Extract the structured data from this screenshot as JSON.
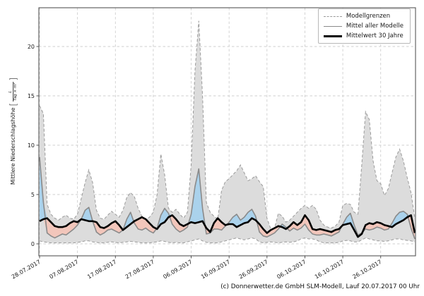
{
  "caption": "(c) Donnerwetter.de GmbH SLM-Modell, Lauf 20.07.2017 00 Uhr",
  "legend": {
    "items": [
      {
        "label": "Modellgrenzen",
        "style": "dashed-gray"
      },
      {
        "label": "Mittel aller Modelle",
        "style": "solid-gray"
      },
      {
        "label": "Mittelwert 30 Jahre",
        "style": "solid-black-thick"
      }
    ]
  },
  "axes": {
    "ylabel_text": "Mittlere Niederschlagshöhe",
    "ylabel_bracket_open": "[",
    "ylabel_fraction_numerator": "L",
    "ylabel_fraction_denominator": "Tag × m²",
    "ylabel_bracket_close": "]",
    "ytick_labels": [
      "0",
      "5",
      "10",
      "15",
      "20"
    ],
    "xtick_labels": [
      "28.07.2017",
      "07.08.2017",
      "17.08.2017",
      "27.08.2017",
      "06.09.2017",
      "16.09.2017",
      "26.09.2017",
      "06.10.2017",
      "16.10.2017",
      "26.10.2017"
    ]
  },
  "colors": {
    "envelope_fill": "#dcdcdc",
    "envelope_edge": "#9a9a9a",
    "model_mean_line": "#8a8a8a",
    "above_mean_fill": "#aad2ec",
    "below_mean_fill": "#f2c6bb",
    "climate_line": "#000000",
    "grid": "#cfcfcf",
    "frame": "#555555"
  },
  "chart_data": {
    "type": "line",
    "title": "",
    "xlabel": "",
    "ylabel": "Mittlere Niederschlagshöhe [L/(Tag × m²)]",
    "x_unit": "days since 28.07.2017 (daily values)",
    "xtick_days": [
      0,
      10,
      20,
      30,
      40,
      50,
      60,
      70,
      80,
      90
    ],
    "xtick_dates": [
      "28.07.2017",
      "07.08.2017",
      "17.08.2017",
      "27.08.2017",
      "06.09.2017",
      "16.09.2017",
      "26.09.2017",
      "06.10.2017",
      "16.10.2017",
      "26.10.2017"
    ],
    "yticks": [
      0,
      5,
      10,
      15,
      20
    ],
    "ylim": [
      -1.2,
      23.9
    ],
    "grid": true,
    "legend_position": "upper right",
    "series": [
      {
        "name": "Modellgrenzen (obere Grenze)",
        "values": [
          14.0,
          13.2,
          4.0,
          3.0,
          2.6,
          2.4,
          2.7,
          2.9,
          2.6,
          2.5,
          3.0,
          4.6,
          6.2,
          7.5,
          6.2,
          3.4,
          2.6,
          2.5,
          2.9,
          3.3,
          3.0,
          2.7,
          3.4,
          4.7,
          5.2,
          4.8,
          3.6,
          2.8,
          2.5,
          2.7,
          3.2,
          5.0,
          9.1,
          7.0,
          3.6,
          3.2,
          3.5,
          3.0,
          2.6,
          3.2,
          8.0,
          17.5,
          22.6,
          15.0,
          4.2,
          3.2,
          2.8,
          2.5,
          5.4,
          6.3,
          6.6,
          7.0,
          7.4,
          8.0,
          7.2,
          6.4,
          6.6,
          6.9,
          6.3,
          5.8,
          2.6,
          1.5,
          1.6,
          3.1,
          2.8,
          2.2,
          2.4,
          2.8,
          3.2,
          3.6,
          3.9,
          3.6,
          3.9,
          3.5,
          2.4,
          1.9,
          1.7,
          1.6,
          1.8,
          2.2,
          3.9,
          4.1,
          4.0,
          3.2,
          3.0,
          8.0,
          13.4,
          12.6,
          8.4,
          6.4,
          6.1,
          4.9,
          5.6,
          7.2,
          8.8,
          9.6,
          8.4,
          6.7,
          5.2,
          2.6
        ]
      },
      {
        "name": "Modellgrenzen (untere Grenze)",
        "values": [
          0.3,
          0.2,
          0.15,
          0.1,
          0.1,
          0.1,
          0.1,
          0.1,
          0.1,
          0.1,
          0.15,
          0.2,
          0.3,
          0.3,
          0.2,
          0.15,
          0.1,
          0.1,
          0.15,
          0.2,
          0.15,
          0.1,
          0.15,
          0.2,
          0.25,
          0.2,
          0.15,
          0.1,
          0.1,
          0.1,
          0.15,
          0.2,
          0.3,
          0.25,
          0.15,
          0.1,
          0.15,
          0.1,
          0.1,
          0.2,
          0.3,
          0.4,
          0.5,
          0.3,
          0.15,
          0.1,
          0.1,
          0.1,
          0.2,
          0.3,
          0.4,
          0.5,
          0.6,
          0.5,
          0.4,
          0.5,
          0.6,
          0.5,
          0.2,
          0.1,
          0.15,
          0.2,
          0.15,
          0.1,
          0.15,
          0.2,
          0.15,
          0.2,
          0.3,
          0.5,
          0.6,
          0.5,
          0.5,
          0.4,
          0.2,
          0.1,
          0.1,
          0.1,
          0.1,
          0.15,
          0.3,
          0.35,
          0.3,
          0.2,
          0.2,
          0.4,
          0.6,
          0.5,
          0.4,
          0.3,
          0.3,
          0.25,
          0.3,
          0.4,
          0.5,
          0.5,
          0.4,
          0.35,
          0.3,
          0.2
        ]
      },
      {
        "name": "Mittel aller Modelle",
        "values": [
          8.8,
          4.2,
          1.1,
          0.8,
          0.6,
          0.8,
          1.0,
          0.9,
          1.2,
          1.5,
          1.9,
          2.5,
          3.4,
          3.7,
          2.3,
          1.2,
          0.9,
          1.1,
          1.4,
          1.5,
          1.3,
          1.1,
          1.4,
          2.5,
          3.2,
          2.1,
          1.5,
          1.4,
          1.6,
          1.3,
          1.1,
          1.6,
          2.9,
          3.6,
          3.1,
          2.0,
          1.5,
          1.2,
          1.4,
          1.7,
          3.0,
          5.8,
          7.6,
          3.6,
          1.0,
          1.1,
          1.5,
          1.5,
          1.4,
          1.8,
          2.2,
          2.7,
          3.0,
          2.4,
          2.7,
          3.2,
          3.5,
          2.8,
          1.2,
          0.8,
          0.7,
          0.9,
          1.1,
          1.5,
          2.0,
          1.7,
          1.3,
          1.6,
          1.4,
          1.6,
          2.0,
          1.4,
          1.0,
          0.9,
          0.9,
          1.0,
          0.9,
          0.8,
          1.0,
          1.2,
          2.0,
          2.7,
          3.1,
          1.9,
          0.9,
          1.1,
          1.5,
          1.4,
          1.5,
          1.7,
          1.6,
          1.4,
          1.5,
          2.1,
          2.8,
          3.2,
          3.3,
          3.0,
          1.6,
          0.5
        ]
      },
      {
        "name": "Mittelwert 30 Jahre",
        "values": [
          2.3,
          2.5,
          2.6,
          2.2,
          1.8,
          1.7,
          1.7,
          1.8,
          2.1,
          2.3,
          2.2,
          2.5,
          2.4,
          2.3,
          2.3,
          2.2,
          1.7,
          1.6,
          1.8,
          2.1,
          2.3,
          1.9,
          1.4,
          1.7,
          2.0,
          2.3,
          2.5,
          2.7,
          2.5,
          2.1,
          1.7,
          1.5,
          2.0,
          2.2,
          2.7,
          2.9,
          2.5,
          2.0,
          1.8,
          2.0,
          2.2,
          2.1,
          2.2,
          2.3,
          1.6,
          1.2,
          2.1,
          2.6,
          2.2,
          1.9,
          2.0,
          2.0,
          1.7,
          1.9,
          2.1,
          2.2,
          2.6,
          2.4,
          2.0,
          1.5,
          1.1,
          1.4,
          1.6,
          1.8,
          1.7,
          1.5,
          1.8,
          2.2,
          1.9,
          2.2,
          2.9,
          2.4,
          1.5,
          1.4,
          1.5,
          1.4,
          1.3,
          1.2,
          1.4,
          1.5,
          1.9,
          2.0,
          2.1,
          1.4,
          0.7,
          1.0,
          1.9,
          2.1,
          2.0,
          2.2,
          2.1,
          1.9,
          1.8,
          1.7,
          2.0,
          2.2,
          2.4,
          2.7,
          2.9,
          1.1
        ]
      }
    ],
    "fill_semantics": {
      "gray_band": "area between upper and lower Modellgrenzen",
      "blue": "Mittel aller Modelle above Mittelwert 30 Jahre",
      "pink": "Mittel aller Modelle below Mittelwert 30 Jahre"
    }
  }
}
